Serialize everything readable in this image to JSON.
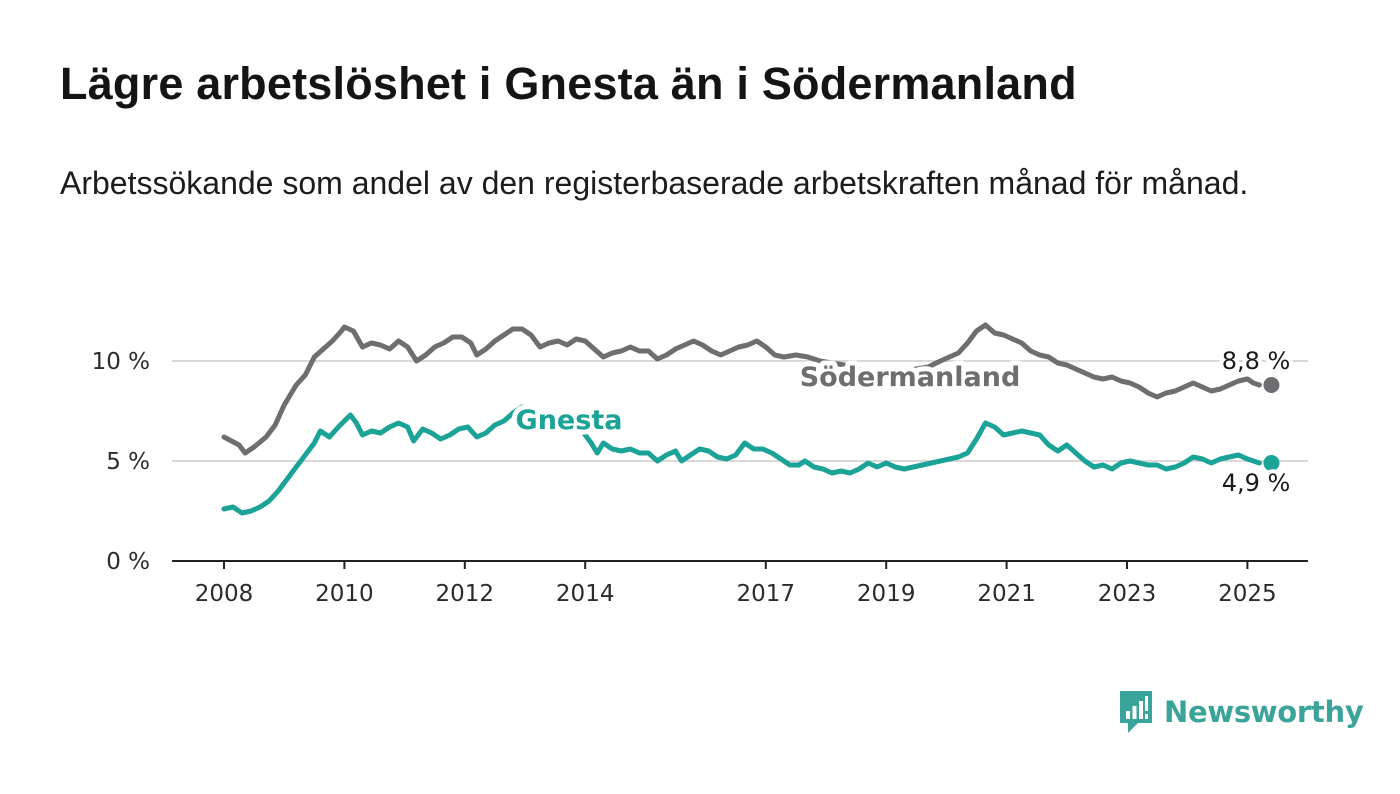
{
  "header": {
    "title": "Lägre arbetslöshet i Gnesta än i Södermanland",
    "subtitle": "Arbetssökande som andel av den registerbaserade arbetskraften månad för månad."
  },
  "brand": {
    "name": "Newsworthy",
    "color": "#3aa39a",
    "icon": "bar-chart-speech-bubble-icon"
  },
  "chart_data": {
    "type": "line",
    "x_unit": "year",
    "xlim": [
      2007.75,
      2025.45
    ],
    "ylim": [
      0,
      12.5
    ],
    "y_ticks": [
      {
        "value": 0,
        "label": "0 %"
      },
      {
        "value": 5,
        "label": "5 %"
      },
      {
        "value": 10,
        "label": "10 %"
      }
    ],
    "x_ticks": [
      {
        "value": 2008,
        "label": "2008"
      },
      {
        "value": 2010,
        "label": "2010"
      },
      {
        "value": 2012,
        "label": "2012"
      },
      {
        "value": 2014,
        "label": "2014"
      },
      {
        "value": 2017,
        "label": "2017"
      },
      {
        "value": 2019,
        "label": "2019"
      },
      {
        "value": 2021,
        "label": "2021"
      },
      {
        "value": 2023,
        "label": "2023"
      },
      {
        "value": 2025,
        "label": "2025"
      }
    ],
    "grid": "horizontal",
    "series": [
      {
        "name": "Södermanland",
        "color": "#6e6d70",
        "end_label": "8,8 %",
        "points": [
          [
            2008.0,
            6.2
          ],
          [
            2008.25,
            5.8
          ],
          [
            2008.35,
            5.4
          ],
          [
            2008.5,
            5.7
          ],
          [
            2008.7,
            6.2
          ],
          [
            2008.85,
            6.8
          ],
          [
            2009.0,
            7.8
          ],
          [
            2009.2,
            8.8
          ],
          [
            2009.35,
            9.3
          ],
          [
            2009.5,
            10.2
          ],
          [
            2009.65,
            10.6
          ],
          [
            2009.8,
            11.0
          ],
          [
            2009.95,
            11.5
          ],
          [
            2010.0,
            11.7
          ],
          [
            2010.15,
            11.5
          ],
          [
            2010.3,
            10.7
          ],
          [
            2010.45,
            10.9
          ],
          [
            2010.6,
            10.8
          ],
          [
            2010.75,
            10.6
          ],
          [
            2010.9,
            11.0
          ],
          [
            2011.05,
            10.7
          ],
          [
            2011.2,
            10.0
          ],
          [
            2011.35,
            10.3
          ],
          [
            2011.5,
            10.7
          ],
          [
            2011.65,
            10.9
          ],
          [
            2011.8,
            11.2
          ],
          [
            2011.95,
            11.2
          ],
          [
            2012.1,
            10.9
          ],
          [
            2012.2,
            10.3
          ],
          [
            2012.35,
            10.6
          ],
          [
            2012.5,
            11.0
          ],
          [
            2012.65,
            11.3
          ],
          [
            2012.8,
            11.6
          ],
          [
            2012.95,
            11.6
          ],
          [
            2013.1,
            11.3
          ],
          [
            2013.25,
            10.7
          ],
          [
            2013.4,
            10.9
          ],
          [
            2013.55,
            11.0
          ],
          [
            2013.7,
            10.8
          ],
          [
            2013.85,
            11.1
          ],
          [
            2014.0,
            11.0
          ],
          [
            2014.15,
            10.6
          ],
          [
            2014.3,
            10.2
          ],
          [
            2014.45,
            10.4
          ],
          [
            2014.6,
            10.5
          ],
          [
            2014.75,
            10.7
          ],
          [
            2014.9,
            10.5
          ],
          [
            2015.05,
            10.5
          ],
          [
            2015.2,
            10.1
          ],
          [
            2015.35,
            10.3
          ],
          [
            2015.5,
            10.6
          ],
          [
            2015.65,
            10.8
          ],
          [
            2015.8,
            11.0
          ],
          [
            2015.95,
            10.8
          ],
          [
            2016.1,
            10.5
          ],
          [
            2016.25,
            10.3
          ],
          [
            2016.4,
            10.5
          ],
          [
            2016.55,
            10.7
          ],
          [
            2016.7,
            10.8
          ],
          [
            2016.85,
            11.0
          ],
          [
            2017.0,
            10.7
          ],
          [
            2017.15,
            10.3
          ],
          [
            2017.3,
            10.2
          ],
          [
            2017.5,
            10.3
          ],
          [
            2017.7,
            10.2
          ],
          [
            2017.9,
            10.0
          ],
          [
            2018.1,
            9.9
          ],
          [
            2018.3,
            9.8
          ],
          [
            2018.5,
            9.6
          ],
          [
            2018.7,
            9.5
          ],
          [
            2018.9,
            9.5
          ],
          [
            2019.1,
            9.6
          ],
          [
            2019.3,
            9.5
          ],
          [
            2019.5,
            9.6
          ],
          [
            2019.7,
            9.7
          ],
          [
            2019.9,
            10.0
          ],
          [
            2020.05,
            10.2
          ],
          [
            2020.2,
            10.4
          ],
          [
            2020.35,
            10.9
          ],
          [
            2020.5,
            11.5
          ],
          [
            2020.65,
            11.8
          ],
          [
            2020.8,
            11.4
          ],
          [
            2020.95,
            11.3
          ],
          [
            2021.1,
            11.1
          ],
          [
            2021.25,
            10.9
          ],
          [
            2021.4,
            10.5
          ],
          [
            2021.55,
            10.3
          ],
          [
            2021.7,
            10.2
          ],
          [
            2021.85,
            9.9
          ],
          [
            2022.0,
            9.8
          ],
          [
            2022.15,
            9.6
          ],
          [
            2022.3,
            9.4
          ],
          [
            2022.45,
            9.2
          ],
          [
            2022.6,
            9.1
          ],
          [
            2022.75,
            9.2
          ],
          [
            2022.9,
            9.0
          ],
          [
            2023.05,
            8.9
          ],
          [
            2023.2,
            8.7
          ],
          [
            2023.35,
            8.4
          ],
          [
            2023.5,
            8.2
          ],
          [
            2023.65,
            8.4
          ],
          [
            2023.8,
            8.5
          ],
          [
            2023.95,
            8.7
          ],
          [
            2024.1,
            8.9
          ],
          [
            2024.25,
            8.7
          ],
          [
            2024.4,
            8.5
          ],
          [
            2024.55,
            8.6
          ],
          [
            2024.7,
            8.8
          ],
          [
            2024.85,
            9.0
          ],
          [
            2025.0,
            9.1
          ],
          [
            2025.1,
            8.9
          ],
          [
            2025.2,
            8.8
          ]
        ]
      },
      {
        "name": "Gnesta",
        "color": "#1aa396",
        "end_label": "4,9 %",
        "points": [
          [
            2008.0,
            2.6
          ],
          [
            2008.15,
            2.7
          ],
          [
            2008.3,
            2.4
          ],
          [
            2008.45,
            2.5
          ],
          [
            2008.6,
            2.7
          ],
          [
            2008.75,
            3.0
          ],
          [
            2008.9,
            3.5
          ],
          [
            2009.05,
            4.1
          ],
          [
            2009.2,
            4.7
          ],
          [
            2009.35,
            5.3
          ],
          [
            2009.5,
            5.9
          ],
          [
            2009.6,
            6.5
          ],
          [
            2009.75,
            6.2
          ],
          [
            2009.9,
            6.7
          ],
          [
            2010.0,
            7.0
          ],
          [
            2010.1,
            7.3
          ],
          [
            2010.2,
            6.9
          ],
          [
            2010.3,
            6.3
          ],
          [
            2010.45,
            6.5
          ],
          [
            2010.6,
            6.4
          ],
          [
            2010.75,
            6.7
          ],
          [
            2010.9,
            6.9
          ],
          [
            2011.05,
            6.7
          ],
          [
            2011.15,
            6.0
          ],
          [
            2011.3,
            6.6
          ],
          [
            2011.45,
            6.4
          ],
          [
            2011.6,
            6.1
          ],
          [
            2011.75,
            6.3
          ],
          [
            2011.9,
            6.6
          ],
          [
            2012.05,
            6.7
          ],
          [
            2012.2,
            6.2
          ],
          [
            2012.35,
            6.4
          ],
          [
            2012.5,
            6.8
          ],
          [
            2012.65,
            7.0
          ],
          [
            2012.8,
            7.4
          ],
          [
            2012.95,
            7.7
          ],
          [
            2013.1,
            7.6
          ],
          [
            2013.3,
            7.4
          ],
          [
            2013.5,
            7.2
          ],
          [
            2013.7,
            7.0
          ],
          [
            2013.9,
            6.7
          ],
          [
            2014.0,
            6.3
          ],
          [
            2014.1,
            5.9
          ],
          [
            2014.2,
            5.4
          ],
          [
            2014.3,
            5.9
          ],
          [
            2014.45,
            5.6
          ],
          [
            2014.6,
            5.5
          ],
          [
            2014.75,
            5.6
          ],
          [
            2014.9,
            5.4
          ],
          [
            2015.05,
            5.4
          ],
          [
            2015.2,
            5.0
          ],
          [
            2015.35,
            5.3
          ],
          [
            2015.5,
            5.5
          ],
          [
            2015.6,
            5.0
          ],
          [
            2015.75,
            5.3
          ],
          [
            2015.9,
            5.6
          ],
          [
            2016.05,
            5.5
          ],
          [
            2016.2,
            5.2
          ],
          [
            2016.35,
            5.1
          ],
          [
            2016.5,
            5.3
          ],
          [
            2016.65,
            5.9
          ],
          [
            2016.8,
            5.6
          ],
          [
            2016.95,
            5.6
          ],
          [
            2017.1,
            5.4
          ],
          [
            2017.25,
            5.1
          ],
          [
            2017.4,
            4.8
          ],
          [
            2017.55,
            4.8
          ],
          [
            2017.65,
            5.0
          ],
          [
            2017.8,
            4.7
          ],
          [
            2017.95,
            4.6
          ],
          [
            2018.1,
            4.4
          ],
          [
            2018.25,
            4.5
          ],
          [
            2018.4,
            4.4
          ],
          [
            2018.55,
            4.6
          ],
          [
            2018.7,
            4.9
          ],
          [
            2018.85,
            4.7
          ],
          [
            2019.0,
            4.9
          ],
          [
            2019.15,
            4.7
          ],
          [
            2019.3,
            4.6
          ],
          [
            2019.45,
            4.7
          ],
          [
            2019.6,
            4.8
          ],
          [
            2019.75,
            4.9
          ],
          [
            2019.9,
            5.0
          ],
          [
            2020.05,
            5.1
          ],
          [
            2020.2,
            5.2
          ],
          [
            2020.35,
            5.4
          ],
          [
            2020.5,
            6.1
          ],
          [
            2020.65,
            6.9
          ],
          [
            2020.8,
            6.7
          ],
          [
            2020.95,
            6.3
          ],
          [
            2021.1,
            6.4
          ],
          [
            2021.25,
            6.5
          ],
          [
            2021.4,
            6.4
          ],
          [
            2021.55,
            6.3
          ],
          [
            2021.7,
            5.8
          ],
          [
            2021.85,
            5.5
          ],
          [
            2022.0,
            5.8
          ],
          [
            2022.15,
            5.4
          ],
          [
            2022.3,
            5.0
          ],
          [
            2022.45,
            4.7
          ],
          [
            2022.6,
            4.8
          ],
          [
            2022.75,
            4.6
          ],
          [
            2022.9,
            4.9
          ],
          [
            2023.05,
            5.0
          ],
          [
            2023.2,
            4.9
          ],
          [
            2023.35,
            4.8
          ],
          [
            2023.5,
            4.8
          ],
          [
            2023.65,
            4.6
          ],
          [
            2023.8,
            4.7
          ],
          [
            2023.95,
            4.9
          ],
          [
            2024.1,
            5.2
          ],
          [
            2024.25,
            5.1
          ],
          [
            2024.4,
            4.9
          ],
          [
            2024.55,
            5.1
          ],
          [
            2024.7,
            5.2
          ],
          [
            2024.85,
            5.3
          ],
          [
            2025.0,
            5.1
          ],
          [
            2025.1,
            5.0
          ],
          [
            2025.2,
            4.9
          ]
        ]
      }
    ]
  }
}
